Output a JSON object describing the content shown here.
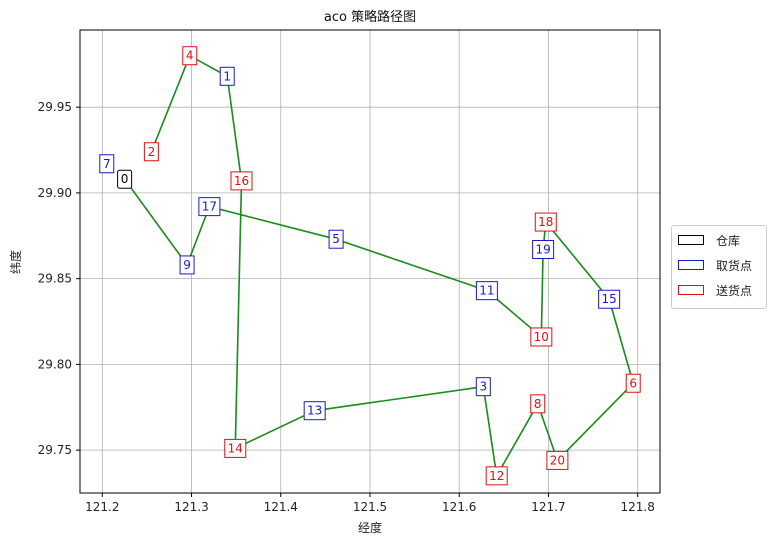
{
  "chart_data": {
    "type": "scatter",
    "title": "aco 策略路径图",
    "xlabel": "经度",
    "ylabel": "纬度",
    "xlim": [
      121.175,
      121.825
    ],
    "ylim": [
      29.725,
      29.995
    ],
    "xticks": [
      "121.2",
      "121.3",
      "121.4",
      "121.5",
      "121.6",
      "121.7",
      "121.8"
    ],
    "yticks": [
      "29.75",
      "29.80",
      "29.85",
      "29.90",
      "29.95"
    ],
    "grid": true,
    "legend_position": "center-right",
    "route_color": "#1a8a1a",
    "node_types": {
      "depot": {
        "label": "仓库",
        "color": "#000000"
      },
      "pickup": {
        "label": "取货点",
        "color": "#1a1acc"
      },
      "delivery": {
        "label": "送货点",
        "color": "#dd1111"
      }
    },
    "nodes": [
      {
        "id": "0",
        "type": "depot",
        "x": 121.225,
        "y": 29.908
      },
      {
        "id": "1",
        "type": "pickup",
        "x": 121.34,
        "y": 29.968
      },
      {
        "id": "2",
        "type": "delivery",
        "x": 121.255,
        "y": 29.924
      },
      {
        "id": "3",
        "type": "pickup",
        "x": 121.627,
        "y": 29.787
      },
      {
        "id": "4",
        "type": "delivery",
        "x": 121.298,
        "y": 29.98
      },
      {
        "id": "5",
        "type": "pickup",
        "x": 121.462,
        "y": 29.873
      },
      {
        "id": "6",
        "type": "delivery",
        "x": 121.795,
        "y": 29.789
      },
      {
        "id": "7",
        "type": "pickup",
        "x": 121.205,
        "y": 29.917
      },
      {
        "id": "8",
        "type": "delivery",
        "x": 121.688,
        "y": 29.777
      },
      {
        "id": "9",
        "type": "pickup",
        "x": 121.295,
        "y": 29.858
      },
      {
        "id": "10",
        "type": "delivery",
        "x": 121.692,
        "y": 29.816
      },
      {
        "id": "11",
        "type": "pickup",
        "x": 121.631,
        "y": 29.843
      },
      {
        "id": "12",
        "type": "delivery",
        "x": 121.642,
        "y": 29.735
      },
      {
        "id": "13",
        "type": "pickup",
        "x": 121.438,
        "y": 29.773
      },
      {
        "id": "14",
        "type": "delivery",
        "x": 121.349,
        "y": 29.751
      },
      {
        "id": "15",
        "type": "pickup",
        "x": 121.768,
        "y": 29.838
      },
      {
        "id": "16",
        "type": "delivery",
        "x": 121.356,
        "y": 29.907
      },
      {
        "id": "17",
        "type": "pickup",
        "x": 121.32,
        "y": 29.892
      },
      {
        "id": "18",
        "type": "delivery",
        "x": 121.697,
        "y": 29.883
      },
      {
        "id": "19",
        "type": "pickup",
        "x": 121.694,
        "y": 29.867
      },
      {
        "id": "20",
        "type": "delivery",
        "x": 121.71,
        "y": 29.744
      }
    ],
    "route": [
      "0",
      "9",
      "17",
      "5",
      "11",
      "10",
      "19",
      "18",
      "15",
      "6",
      "20",
      "8",
      "12",
      "3",
      "13",
      "14",
      "16",
      "1",
      "4",
      "2"
    ]
  }
}
